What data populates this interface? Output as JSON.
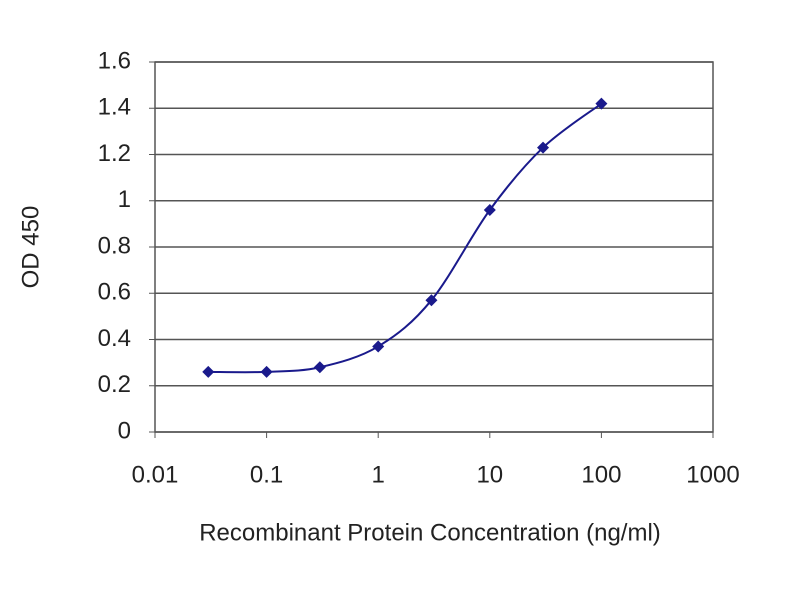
{
  "chart_data": {
    "type": "line",
    "x_label": "Recombinant Protein Concentration (ng/ml)",
    "y_label": "OD 450",
    "x": [
      0.03,
      0.1,
      0.3,
      1,
      3,
      10,
      30,
      100
    ],
    "values": [
      0.26,
      0.26,
      0.28,
      0.37,
      0.57,
      0.96,
      1.23,
      1.42
    ],
    "color": "#1a1a8c",
    "xscale": "log",
    "xlim": [
      0.01,
      1000
    ],
    "xticks": [
      0.01,
      0.1,
      1,
      10,
      100,
      1000
    ],
    "ylim": [
      0,
      1.6
    ],
    "yticks": [
      0,
      0.2,
      0.4,
      0.6,
      0.8,
      1,
      1.2,
      1.4,
      1.6
    ],
    "grid": true
  }
}
